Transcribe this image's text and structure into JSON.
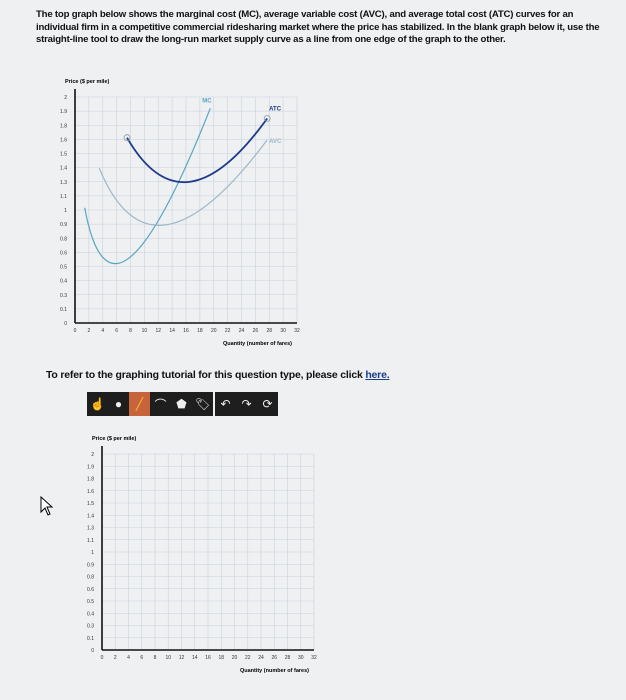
{
  "intro_text": "The top graph below shows the marginal cost (MC), average variable cost (AVC), and average total cost (ATC) curves for an individual firm in a competitive commercial ridesharing market where the price has stabilized. In the blank graph below it, use the straight-line tool to draw the long-run market supply curve as a line from one edge of the graph to the other.",
  "tutorial": {
    "text": "To refer to the graphing tutorial for this question type, please click ",
    "link": "here."
  },
  "toolbar": {
    "tools": [
      {
        "name": "select-tool",
        "glyph": "☝"
      },
      {
        "name": "point-tool",
        "glyph": "●"
      },
      {
        "name": "line-tool",
        "glyph": "╱",
        "active": true
      },
      {
        "name": "curve-tool",
        "glyph": "⌒"
      },
      {
        "name": "polygon-tool",
        "glyph": "⬟"
      },
      {
        "name": "label-tool",
        "glyph": "🏷"
      }
    ],
    "history": [
      {
        "name": "undo",
        "glyph": "↶"
      },
      {
        "name": "redo",
        "glyph": "↷"
      },
      {
        "name": "reset",
        "glyph": "⟳"
      }
    ]
  },
  "chart_data": [
    {
      "type": "line",
      "ylabel": "Price ($ per mile)",
      "xlabel": "Quantity (number of fares)",
      "xlim": [
        0,
        32
      ],
      "ylim": [
        0,
        2
      ],
      "x_ticks": [
        "0",
        "2",
        "4",
        "6",
        "8",
        "10",
        "12",
        "14",
        "16",
        "18",
        "20",
        "22",
        "24",
        "26",
        "28",
        "30",
        "32"
      ],
      "y_ticks": [
        "2",
        "1.9",
        "1.8",
        "1.6",
        "1.5",
        "1.4",
        "1.3",
        "1.1",
        "1",
        "0.9",
        "0.8",
        "0.6",
        "0.5",
        "0.4",
        "0.3",
        "0.1",
        "0"
      ],
      "grid": true,
      "series": [
        {
          "name": "MC",
          "color": "#5aa6c0",
          "points": [
            [
              1.4,
              1.02
            ],
            [
              7.9,
              0.58
            ],
            [
              19.5,
              1.9
            ]
          ]
        },
        {
          "name": "AVC",
          "color": "#9ab6c8",
          "points": [
            [
              3.5,
              1.37
            ],
            [
              13.3,
              0.87
            ],
            [
              27.7,
              1.62
            ]
          ]
        },
        {
          "name": "ATC",
          "color": "#1e3a8a",
          "points": [
            [
              7.5,
              1.64
            ],
            [
              16.6,
              1.25
            ],
            [
              27.7,
              1.81
            ]
          ]
        }
      ]
    },
    {
      "type": "line",
      "ylabel": "Price ($ per mile)",
      "xlabel": "Quantity (number of fares)",
      "xlim": [
        0,
        32
      ],
      "ylim": [
        0,
        2
      ],
      "x_ticks": [
        "0",
        "2",
        "4",
        "6",
        "8",
        "10",
        "12",
        "14",
        "16",
        "18",
        "20",
        "22",
        "24",
        "26",
        "28",
        "30",
        "32"
      ],
      "y_ticks": [
        "2",
        "1.9",
        "1.8",
        "1.6",
        "1.5",
        "1.4",
        "1.3",
        "1.1",
        "1",
        "0.9",
        "0.8",
        "0.6",
        "0.5",
        "0.4",
        "0.3",
        "0.1",
        "0"
      ],
      "grid": true,
      "series": []
    }
  ]
}
